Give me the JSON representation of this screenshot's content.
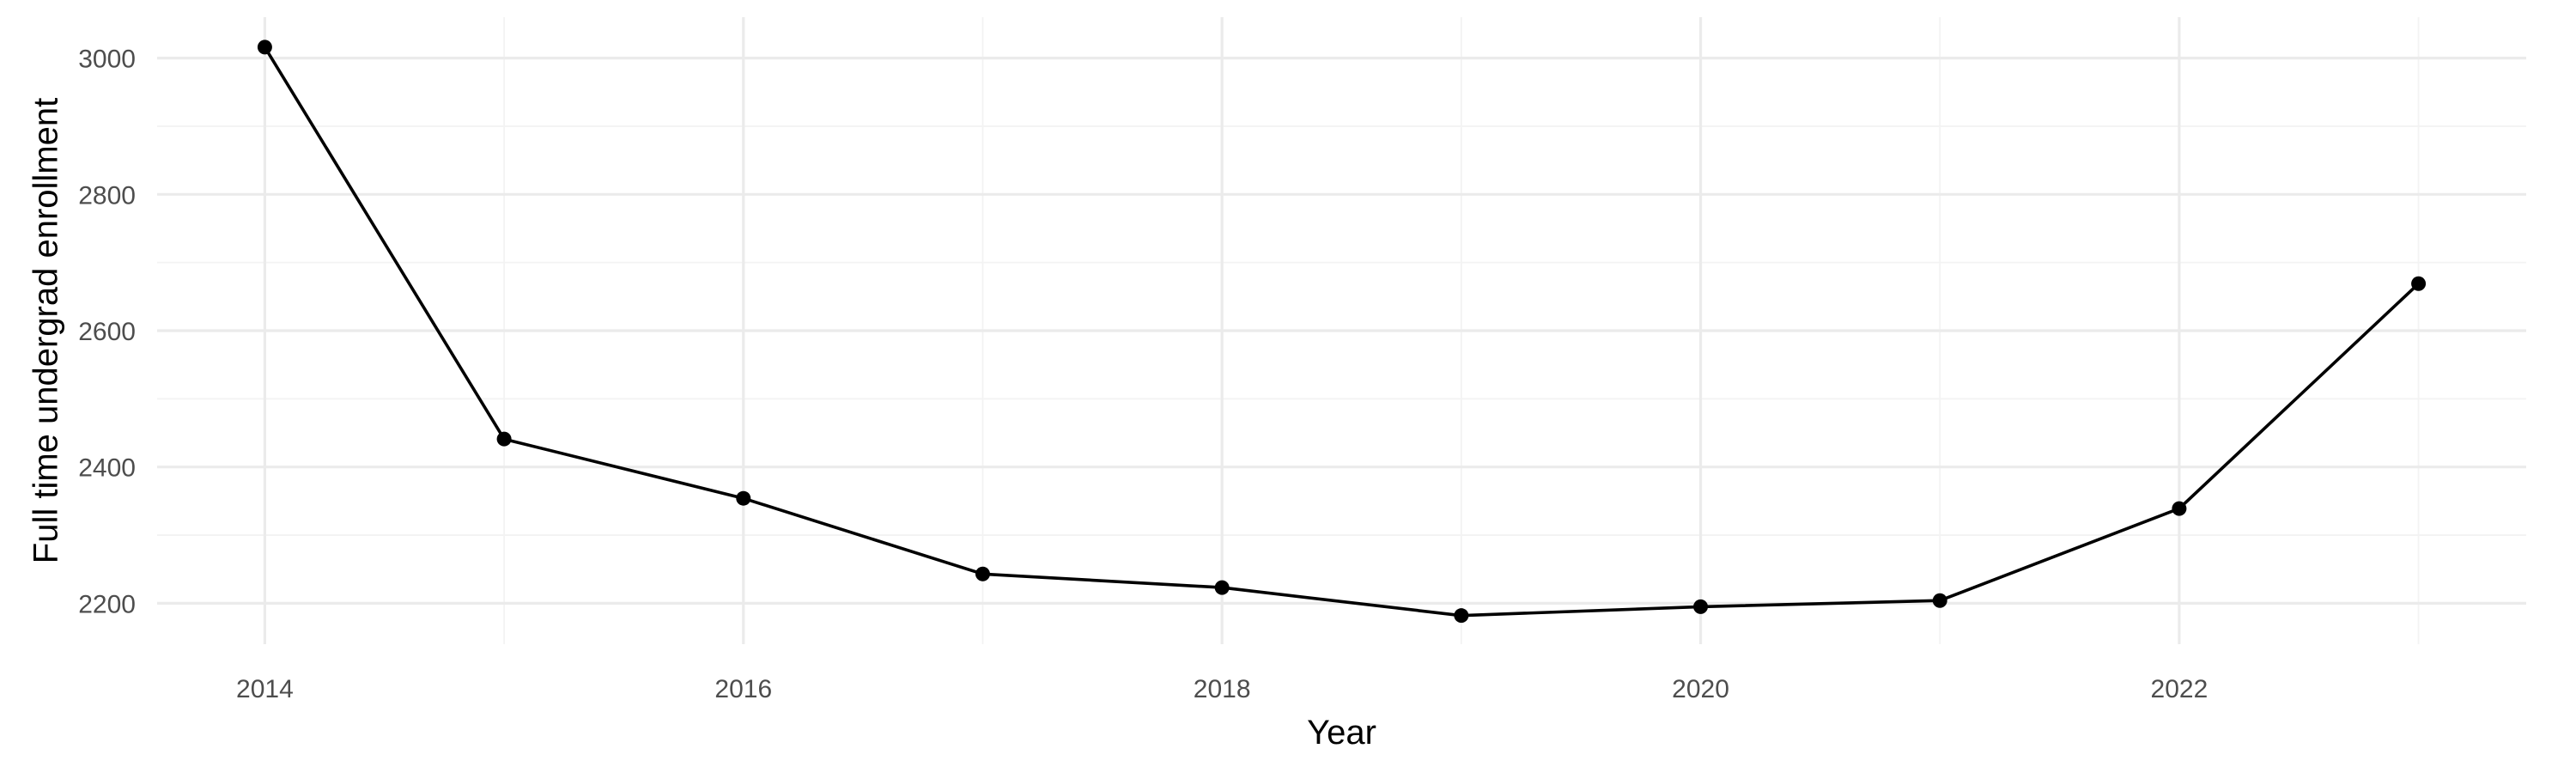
{
  "chart_data": {
    "type": "line",
    "x": [
      2014,
      2015,
      2016,
      2017,
      2018,
      2019,
      2020,
      2021,
      2022,
      2023
    ],
    "series": [
      {
        "values": [
          3016,
          2441,
          2354,
          2243,
          2223,
          2182,
          2195,
          2204,
          2339,
          2669
        ]
      }
    ],
    "xlabel": "Year",
    "ylabel": "Full time undergrad enrollment",
    "xlim": [
      2013.55,
      2023.45
    ],
    "ylim": [
      2140,
      3060
    ],
    "x_ticks": [
      2014,
      2016,
      2018,
      2020,
      2022
    ],
    "y_ticks": [
      2200,
      2400,
      2600,
      2800,
      3000
    ],
    "x_tick_labels": [
      "2014",
      "2016",
      "2018",
      "2020",
      "2022"
    ],
    "y_tick_labels": [
      "2200",
      "2400",
      "2600",
      "2800",
      "3000"
    ],
    "grid": true,
    "legend": "none",
    "colors": {
      "line": "#000000",
      "points": "#000000",
      "grid": "#ebebeb",
      "tick_text": "#4d4d4d"
    }
  }
}
